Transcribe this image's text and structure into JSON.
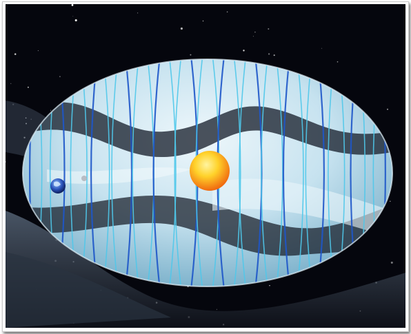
{
  "image": {
    "subject": "illustration",
    "icons": {
      "sun": "sun-icon",
      "earth": "earth-icon",
      "moon": "moon-icon",
      "stars": "star-icon"
    },
    "colors": {
      "background": "#05060d",
      "bubble": "#cde6f2",
      "field_lines_light": "#4fc8ea",
      "field_lines_dark": "#1e57c9",
      "sun_inner": "#ffe14a",
      "sun_outer": "#f47b12"
    }
  }
}
